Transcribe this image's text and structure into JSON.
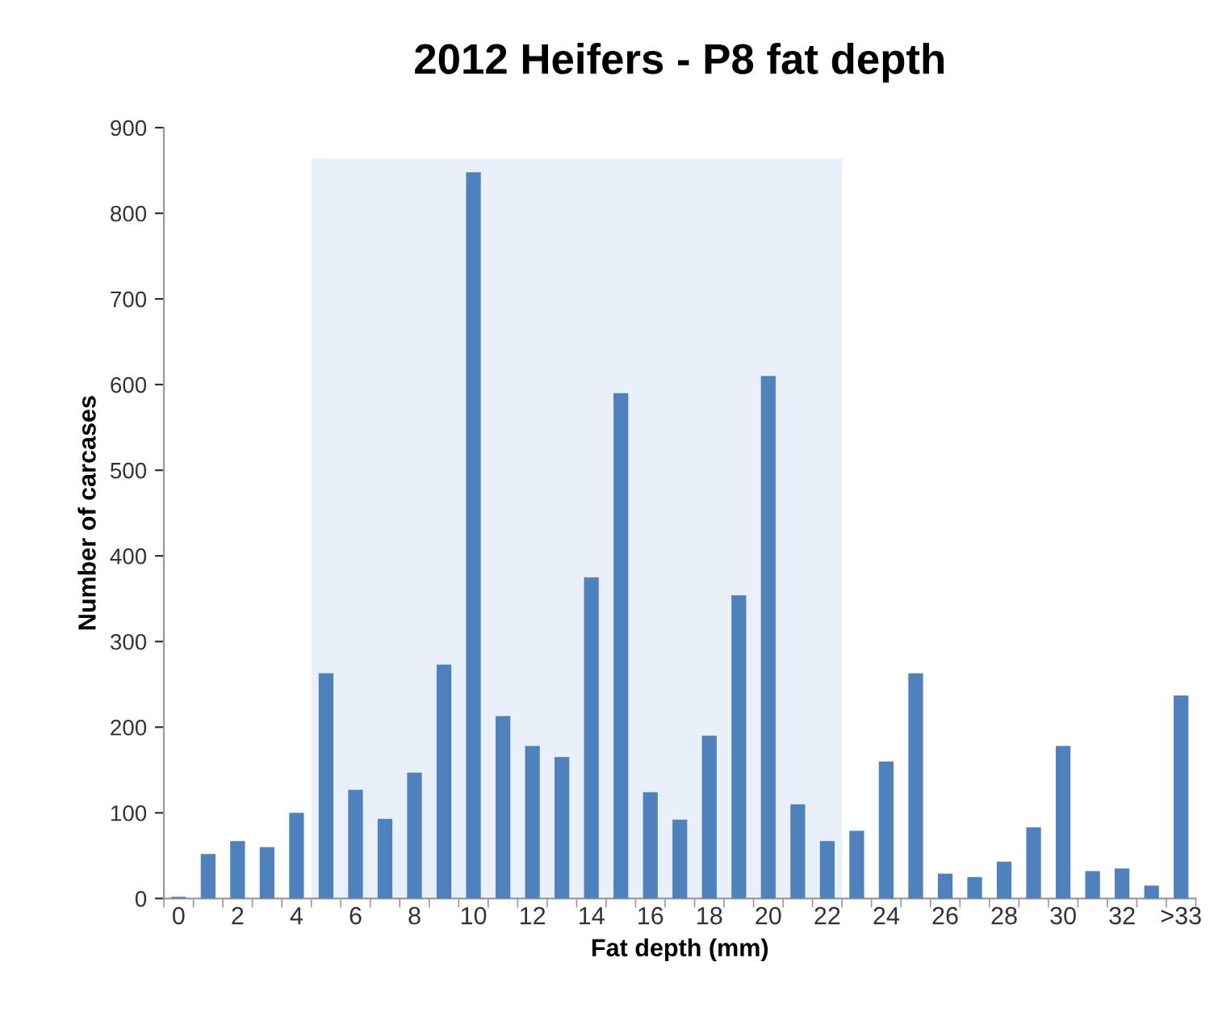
{
  "chart_data": {
    "type": "bar",
    "title": "2012 Heifers - P8 fat depth",
    "xlabel": "Fat depth (mm)",
    "ylabel": "Number of carcases",
    "categories": [
      "0",
      null,
      "2",
      null,
      "4",
      null,
      "6",
      null,
      "8",
      null,
      "10",
      null,
      "12",
      null,
      "14",
      null,
      "16",
      null,
      "18",
      null,
      "20",
      null,
      "22",
      null,
      "24",
      null,
      "26",
      null,
      "28",
      null,
      "30",
      null,
      "32",
      null,
      ">33"
    ],
    "values": [
      2,
      52,
      67,
      60,
      100,
      263,
      127,
      93,
      147,
      273,
      848,
      213,
      178,
      165,
      375,
      590,
      124,
      92,
      190,
      354,
      610,
      110,
      67,
      79,
      160,
      263,
      29,
      25,
      43,
      83,
      178,
      32,
      35,
      15,
      237
    ],
    "color": "#4f81bd",
    "ylim": [
      0,
      900
    ],
    "yticks": [
      0,
      100,
      200,
      300,
      400,
      500,
      600,
      700,
      800,
      900
    ],
    "grid": false
  }
}
